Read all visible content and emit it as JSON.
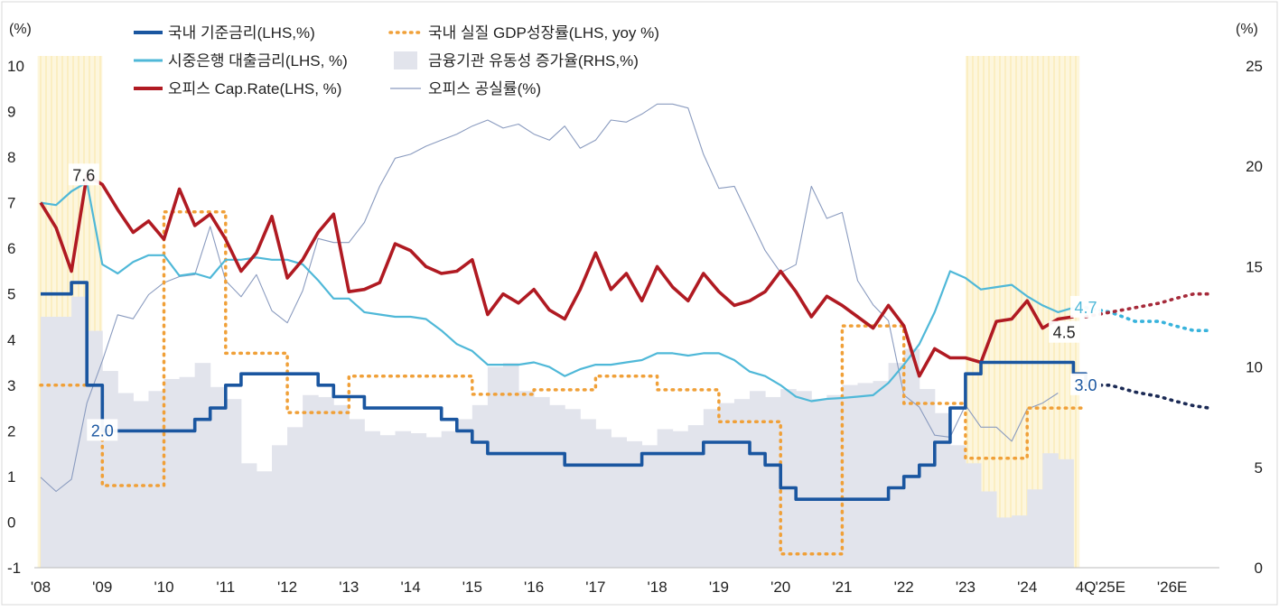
{
  "chart_data": {
    "type": "line",
    "left_axis_unit": "(%)",
    "right_axis_unit": "(%)",
    "left_axis": {
      "min": -1,
      "max": 10,
      "ticks": [
        "-1",
        "0",
        "1",
        "2",
        "3",
        "4",
        "5",
        "6",
        "7",
        "8",
        "9",
        "10"
      ]
    },
    "right_axis": {
      "min": 0,
      "max": 25,
      "ticks": [
        "0",
        "5",
        "10",
        "15",
        "20",
        "25"
      ]
    },
    "x_axis": {
      "start": 2008.0,
      "end": 2027.0,
      "tick_labels": [
        "'08",
        "'09",
        "'10",
        "'11",
        "'12",
        "'13",
        "'14",
        "'15",
        "'16",
        "'17",
        "'18",
        "'19",
        "'20",
        "'21",
        "'22",
        "'23",
        "'24",
        "4Q",
        "'25E",
        "'26E"
      ],
      "tick_values": [
        2008,
        2009,
        2010,
        2011,
        2012,
        2013,
        2014,
        2015,
        2016,
        2017,
        2018,
        2019,
        2020,
        2021,
        2022,
        2023,
        2024,
        2024.95,
        2025.35,
        2026.35
      ]
    },
    "shaded_periods": [
      [
        2007.95,
        2009.0
      ],
      [
        2023.0,
        2024.85
      ]
    ],
    "legend": {
      "base_rate": "국내 기준금리(LHS,%)",
      "gdp": "국내 실질 GDP성장률(LHS, yoy %)",
      "loan_rate": "시중은행 대출금리(LHS, %)",
      "liquidity": "금융기관 유동성 증가율(RHS,%)",
      "cap_rate": "오피스 Cap.Rate(LHS, %)",
      "vacancy": "오피스 공실률(%)"
    },
    "colors": {
      "base_rate": "#1a56a0",
      "base_rate_forecast": "#1b2a55",
      "gdp": "#f0a038",
      "loan_rate": "#4fb8d8",
      "cap_rate": "#b01a22",
      "cap_rate_forecast": "#a62a3a",
      "liquidity": "#e2e4ec",
      "vacancy": "#8a9bbf",
      "shade": "#fbeec2"
    },
    "annotations": [
      {
        "text": "7.6",
        "x": 2008.7,
        "y": 7.6,
        "color": "#222222"
      },
      {
        "text": "2.0",
        "x": 2009.0,
        "y": 2.0,
        "color": "#1a56a0"
      },
      {
        "text": "4.7",
        "x": 2024.95,
        "y": 4.7,
        "color": "#4fb8d8"
      },
      {
        "text": "4.5",
        "x": 2024.6,
        "y": 4.15,
        "color": "#222222"
      },
      {
        "text": "3.0",
        "x": 2024.95,
        "y": 3.0,
        "color": "#1a56a0"
      }
    ],
    "series": [
      {
        "key": "liquidity",
        "name": "금융기관 유동성 증가율(RHS,%)",
        "type": "bar",
        "axis": "right",
        "x": [
          2008.0,
          2008.25,
          2008.5,
          2008.75,
          2009.0,
          2009.25,
          2009.5,
          2009.75,
          2010.0,
          2010.25,
          2010.5,
          2010.75,
          2011.0,
          2011.25,
          2011.5,
          2011.75,
          2012.0,
          2012.25,
          2012.5,
          2012.75,
          2013.0,
          2013.25,
          2013.5,
          2013.75,
          2014.0,
          2014.25,
          2014.5,
          2014.75,
          2015.0,
          2015.25,
          2015.5,
          2015.75,
          2016.0,
          2016.25,
          2016.5,
          2016.75,
          2017.0,
          2017.25,
          2017.5,
          2017.75,
          2018.0,
          2018.25,
          2018.5,
          2018.75,
          2019.0,
          2019.25,
          2019.5,
          2019.75,
          2020.0,
          2020.25,
          2020.5,
          2020.75,
          2021.0,
          2021.25,
          2021.5,
          2021.75,
          2022.0,
          2022.25,
          2022.5,
          2022.75,
          2023.0,
          2023.25,
          2023.5,
          2023.75,
          2024.0,
          2024.25,
          2024.5
        ],
        "values": [
          12.5,
          12.5,
          13.5,
          11.8,
          9.8,
          8.7,
          8.3,
          8.8,
          9.4,
          9.5,
          10.2,
          9.0,
          8.4,
          5.2,
          4.8,
          6.1,
          7.0,
          8.6,
          8.5,
          8.1,
          7.4,
          6.8,
          6.6,
          6.8,
          6.7,
          6.5,
          6.8,
          7.4,
          8.1,
          10.0,
          10.2,
          8.8,
          8.5,
          8.1,
          7.9,
          7.4,
          6.9,
          6.5,
          6.3,
          6.1,
          6.9,
          6.8,
          7.1,
          7.9,
          8.2,
          8.4,
          8.8,
          8.5,
          8.9,
          8.8,
          8.4,
          8.6,
          9.1,
          9.2,
          9.3,
          10.2,
          10.9,
          8.9,
          7.7,
          6.1,
          5.2,
          3.8,
          2.5,
          2.6,
          3.9,
          5.7,
          5.4
        ]
      },
      {
        "key": "vacancy",
        "name": "오피스 공실률(%)",
        "type": "line",
        "axis": "right",
        "x": [
          2008.0,
          2008.25,
          2008.5,
          2008.75,
          2009.0,
          2009.25,
          2009.5,
          2009.75,
          2010.0,
          2010.25,
          2010.5,
          2010.75,
          2011.0,
          2011.25,
          2011.5,
          2011.75,
          2012.0,
          2012.25,
          2012.5,
          2012.75,
          2013.0,
          2013.25,
          2013.5,
          2013.75,
          2014.0,
          2014.25,
          2014.5,
          2014.75,
          2015.0,
          2015.25,
          2015.5,
          2015.75,
          2016.0,
          2016.25,
          2016.5,
          2016.75,
          2017.0,
          2017.25,
          2017.5,
          2017.75,
          2018.0,
          2018.25,
          2018.5,
          2018.75,
          2019.0,
          2019.25,
          2019.5,
          2019.75,
          2020.0,
          2020.25,
          2020.5,
          2020.75,
          2021.0,
          2021.25,
          2021.5,
          2021.75,
          2022.0,
          2022.25,
          2022.5,
          2022.75,
          2023.0,
          2023.25,
          2023.5,
          2023.75,
          2024.0,
          2024.25,
          2024.5
        ],
        "values": [
          4.5,
          3.8,
          4.4,
          8.2,
          10.3,
          12.6,
          12.4,
          13.6,
          14.2,
          14.5,
          14.6,
          17.0,
          14.3,
          13.5,
          14.6,
          12.8,
          12.2,
          13.8,
          16.4,
          16.2,
          16.2,
          17.2,
          19.0,
          20.4,
          20.6,
          21.0,
          21.3,
          21.6,
          22.0,
          22.3,
          21.9,
          22.1,
          21.6,
          21.3,
          22.0,
          20.9,
          21.3,
          22.3,
          22.2,
          22.6,
          23.1,
          23.1,
          22.9,
          20.6,
          18.9,
          19.0,
          17.4,
          15.8,
          14.7,
          15.1,
          19.0,
          17.4,
          17.7,
          14.3,
          13.1,
          12.3,
          8.6,
          8.0,
          6.6,
          6.5,
          8.1,
          7.0,
          7.0,
          6.3,
          7.9,
          8.2,
          8.7
        ]
      },
      {
        "key": "gdp",
        "name": "국내 실질 GDP성장률(LHS, yoy %)",
        "type": "step",
        "axis": "left",
        "dashed": true,
        "x": [
          2008.0,
          2009.0,
          2010.0,
          2011.0,
          2012.0,
          2013.0,
          2014.0,
          2015.0,
          2016.0,
          2017.0,
          2018.0,
          2019.0,
          2020.0,
          2021.0,
          2022.0,
          2023.0,
          2024.0,
          2024.95
        ],
        "values": [
          3.0,
          0.8,
          6.8,
          3.7,
          2.4,
          3.2,
          3.2,
          2.8,
          2.9,
          3.2,
          2.9,
          2.2,
          -0.7,
          4.3,
          2.6,
          1.4,
          2.5,
          2.5
        ]
      },
      {
        "key": "loan_rate",
        "name": "시중은행 대출금리(LHS, %)",
        "type": "line",
        "axis": "left",
        "x": [
          2008.0,
          2008.25,
          2008.5,
          2008.75,
          2009.0,
          2009.25,
          2009.5,
          2009.75,
          2010.0,
          2010.25,
          2010.5,
          2010.75,
          2011.0,
          2011.25,
          2011.5,
          2011.75,
          2012.0,
          2012.25,
          2012.5,
          2012.75,
          2013.0,
          2013.25,
          2013.5,
          2013.75,
          2014.0,
          2014.25,
          2014.5,
          2014.75,
          2015.0,
          2015.25,
          2015.5,
          2015.75,
          2016.0,
          2016.25,
          2016.5,
          2016.75,
          2017.0,
          2017.25,
          2017.5,
          2017.75,
          2018.0,
          2018.25,
          2018.5,
          2018.75,
          2019.0,
          2019.25,
          2019.5,
          2019.75,
          2020.0,
          2020.25,
          2020.5,
          2020.75,
          2021.0,
          2021.25,
          2021.5,
          2021.75,
          2022.0,
          2022.25,
          2022.5,
          2022.75,
          2023.0,
          2023.25,
          2023.5,
          2023.75,
          2024.0,
          2024.25,
          2024.5,
          2024.75
        ],
        "values": [
          7.0,
          6.95,
          7.25,
          7.45,
          5.65,
          5.45,
          5.7,
          5.85,
          5.85,
          5.4,
          5.45,
          5.35,
          5.75,
          5.75,
          5.8,
          5.75,
          5.75,
          5.65,
          5.3,
          4.9,
          4.9,
          4.6,
          4.55,
          4.5,
          4.5,
          4.45,
          4.2,
          3.9,
          3.75,
          3.45,
          3.45,
          3.45,
          3.5,
          3.4,
          3.2,
          3.35,
          3.45,
          3.45,
          3.5,
          3.55,
          3.7,
          3.7,
          3.65,
          3.7,
          3.7,
          3.55,
          3.3,
          3.2,
          3.0,
          2.75,
          2.65,
          2.7,
          2.72,
          2.75,
          2.78,
          3.05,
          3.45,
          3.9,
          4.6,
          5.5,
          5.35,
          5.1,
          5.15,
          5.2,
          4.95,
          4.75,
          4.6,
          4.7
        ]
      },
      {
        "key": "cap_rate",
        "name": "오피스 Cap.Rate(LHS, %)",
        "type": "line",
        "axis": "left",
        "x": [
          2008.0,
          2008.25,
          2008.5,
          2008.75,
          2009.0,
          2009.25,
          2009.5,
          2009.75,
          2010.0,
          2010.25,
          2010.5,
          2010.75,
          2011.0,
          2011.25,
          2011.5,
          2011.75,
          2012.0,
          2012.25,
          2012.5,
          2012.75,
          2013.0,
          2013.25,
          2013.5,
          2013.75,
          2014.0,
          2014.25,
          2014.5,
          2014.75,
          2015.0,
          2015.25,
          2015.5,
          2015.75,
          2016.0,
          2016.25,
          2016.5,
          2016.75,
          2017.0,
          2017.25,
          2017.5,
          2017.75,
          2018.0,
          2018.25,
          2018.5,
          2018.75,
          2019.0,
          2019.25,
          2019.5,
          2019.75,
          2020.0,
          2020.25,
          2020.5,
          2020.75,
          2021.0,
          2021.25,
          2021.5,
          2021.75,
          2022.0,
          2022.25,
          2022.5,
          2022.75,
          2023.0,
          2023.25,
          2023.5,
          2023.75,
          2024.0,
          2024.25,
          2024.5,
          2024.75
        ],
        "values": [
          7.0,
          6.45,
          5.5,
          7.6,
          7.4,
          6.85,
          6.35,
          6.6,
          6.2,
          7.3,
          6.5,
          6.75,
          6.2,
          5.5,
          5.9,
          6.7,
          5.35,
          5.75,
          6.35,
          6.75,
          5.05,
          5.1,
          5.25,
          6.1,
          5.95,
          5.6,
          5.45,
          5.5,
          5.75,
          4.55,
          5.0,
          4.8,
          5.1,
          4.65,
          4.45,
          5.1,
          5.9,
          5.1,
          5.45,
          4.85,
          5.6,
          5.15,
          4.85,
          5.45,
          5.05,
          4.75,
          4.85,
          5.05,
          5.5,
          5.05,
          4.5,
          4.95,
          4.75,
          4.5,
          4.25,
          4.75,
          4.3,
          3.2,
          3.8,
          3.6,
          3.6,
          3.5,
          4.4,
          4.45,
          4.85,
          4.25,
          4.45,
          4.5
        ]
      },
      {
        "key": "base_rate",
        "name": "국내 기준금리(LHS,%)",
        "type": "step",
        "axis": "left",
        "x": [
          2008.0,
          2008.25,
          2008.5,
          2008.75,
          2009.0,
          2009.25,
          2009.5,
          2009.75,
          2010.0,
          2010.25,
          2010.5,
          2010.75,
          2011.0,
          2011.25,
          2011.5,
          2011.75,
          2012.0,
          2012.25,
          2012.5,
          2012.75,
          2013.0,
          2013.25,
          2013.5,
          2013.75,
          2014.0,
          2014.25,
          2014.5,
          2014.75,
          2015.0,
          2015.25,
          2015.5,
          2015.75,
          2016.0,
          2016.25,
          2016.5,
          2016.75,
          2017.0,
          2017.25,
          2017.5,
          2017.75,
          2018.0,
          2018.25,
          2018.5,
          2018.75,
          2019.0,
          2019.25,
          2019.5,
          2019.75,
          2020.0,
          2020.25,
          2020.5,
          2020.75,
          2021.0,
          2021.25,
          2021.5,
          2021.75,
          2022.0,
          2022.25,
          2022.5,
          2022.75,
          2023.0,
          2023.25,
          2023.5,
          2023.75,
          2024.0,
          2024.25,
          2024.5,
          2024.75,
          2024.95
        ],
        "values": [
          5.0,
          5.0,
          5.25,
          3.0,
          2.0,
          2.0,
          2.0,
          2.0,
          2.0,
          2.0,
          2.25,
          2.5,
          3.0,
          3.25,
          3.25,
          3.25,
          3.25,
          3.25,
          3.0,
          2.75,
          2.75,
          2.5,
          2.5,
          2.5,
          2.5,
          2.5,
          2.25,
          2.0,
          1.75,
          1.5,
          1.5,
          1.5,
          1.5,
          1.5,
          1.25,
          1.25,
          1.25,
          1.25,
          1.25,
          1.5,
          1.5,
          1.5,
          1.5,
          1.75,
          1.75,
          1.75,
          1.5,
          1.25,
          0.75,
          0.5,
          0.5,
          0.5,
          0.5,
          0.5,
          0.5,
          0.75,
          1.0,
          1.25,
          1.75,
          2.5,
          3.25,
          3.5,
          3.5,
          3.5,
          3.5,
          3.5,
          3.5,
          3.25,
          3.0
        ]
      }
    ],
    "forecasts": [
      {
        "key": "loan_rate_fc",
        "color": "#38b3dc",
        "x": [
          2024.95,
          2025.35,
          2025.75,
          2026.15,
          2026.4,
          2026.7,
          2026.95
        ],
        "values": [
          4.7,
          4.6,
          4.4,
          4.4,
          4.3,
          4.2,
          4.2
        ]
      },
      {
        "key": "cap_rate_fc",
        "color": "#a62a3a",
        "x": [
          2024.95,
          2025.35,
          2025.75,
          2026.15,
          2026.4,
          2026.7,
          2026.95
        ],
        "values": [
          4.5,
          4.6,
          4.7,
          4.8,
          4.9,
          5.0,
          5.0
        ]
      },
      {
        "key": "base_rate_fc",
        "color": "#1b2a55",
        "x": [
          2024.95,
          2025.35,
          2025.75,
          2026.15,
          2026.4,
          2026.7,
          2026.95
        ],
        "values": [
          3.0,
          3.0,
          2.85,
          2.75,
          2.65,
          2.55,
          2.5
        ]
      }
    ]
  }
}
